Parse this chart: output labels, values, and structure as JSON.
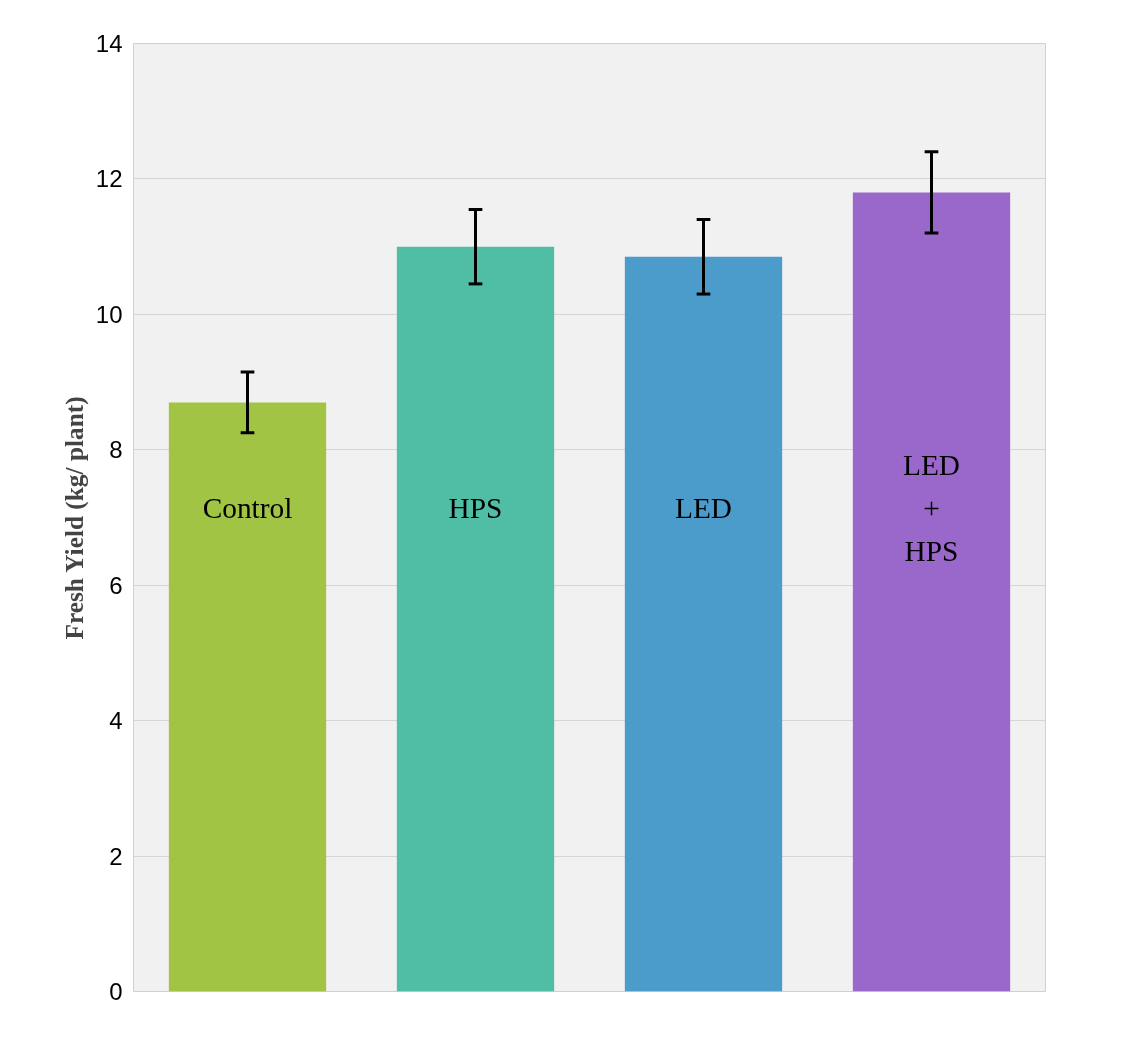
{
  "chart_data": {
    "type": "bar",
    "ylabel": "Fresh Yield (kg/ plant)",
    "categories": [
      "Control",
      "HPS",
      "LED",
      "LED\n+\nHPS"
    ],
    "values": [
      8.7,
      11.0,
      10.85,
      11.8
    ],
    "colors": [
      "#a1c444",
      "#50bea4",
      "#4b9ccb",
      "#9a68cb"
    ],
    "errors": [
      0.45,
      0.55,
      0.55,
      0.6
    ],
    "ylim": [
      0,
      14
    ],
    "yticks": [
      0,
      2,
      4,
      6,
      8,
      10,
      12,
      14
    ],
    "grid": "y",
    "tick_labels": "y"
  }
}
